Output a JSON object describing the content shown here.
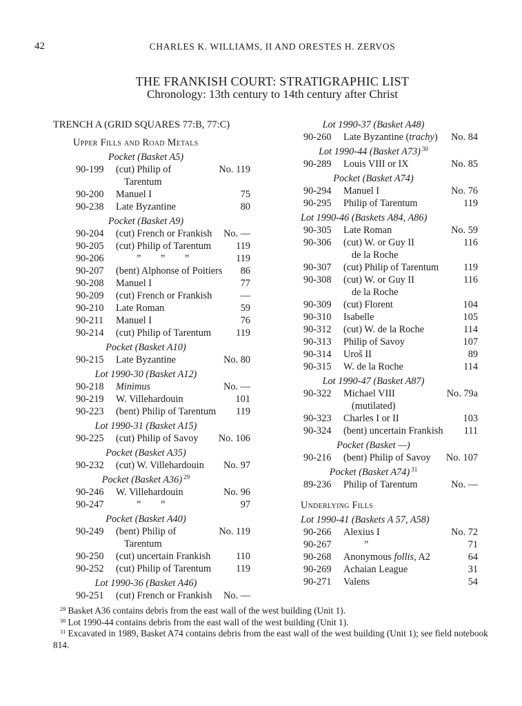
{
  "page_number": "42",
  "running_head": "CHARLES K. WILLIAMS, II AND ORESTES H. ZERVOS",
  "title": "THE FRANKISH COURT: STRATIGRAPHIC LIST",
  "subtitle": "Chronology: 13th century to 14th century after Christ",
  "column_left": {
    "entries": [
      {
        "type": "h1",
        "text": "TRENCH A (GRID SQUARES 77:B, 77:C)"
      },
      {
        "type": "h2",
        "text": "Upper Fills and Road Metals",
        "first": true
      },
      {
        "type": "sub",
        "text": "Pocket (Basket A5)"
      },
      {
        "type": "row",
        "code": "90-199",
        "desc": "(cut) Philip of",
        "num": "No. 119",
        "cont": "Tarentum"
      },
      {
        "type": "row",
        "code": "90-200",
        "desc": "Manuel I",
        "num": "75"
      },
      {
        "type": "row",
        "code": "90-238",
        "desc": "Late Byzantine",
        "num": "80"
      },
      {
        "type": "sub",
        "text": "Pocket (Basket A9)"
      },
      {
        "type": "row",
        "code": "90-204",
        "desc": "(cut) French or Frankish",
        "num": "No. —"
      },
      {
        "type": "row",
        "code": "90-205",
        "desc": "(cut) Philip of Tarentum",
        "num": "119"
      },
      {
        "type": "row",
        "code": "90-206",
        "desc": "”        ”        ”",
        "ditto": true,
        "num": "119"
      },
      {
        "type": "row",
        "code": "90-207",
        "desc": "(bent) Alphonse of Poitiers",
        "num": "86"
      },
      {
        "type": "row",
        "code": "90-208",
        "desc": "Manuel I",
        "num": "77"
      },
      {
        "type": "row",
        "code": "90-209",
        "desc": "(cut) French or Frankish",
        "num": "—"
      },
      {
        "type": "row",
        "code": "90-210",
        "desc": "Late Roman",
        "num": "59"
      },
      {
        "type": "row",
        "code": "90-211",
        "desc": "Manuel I",
        "num": "76"
      },
      {
        "type": "row",
        "code": "90-214",
        "desc": "(cut) Philip of Tarentum",
        "num": "119"
      },
      {
        "type": "sub",
        "text": "Pocket (Basket A10)"
      },
      {
        "type": "row",
        "code": "90-215",
        "desc": "Late Byzantine",
        "num": "No. 80"
      },
      {
        "type": "sub",
        "text": "Lot 1990-30 (Basket A12)"
      },
      {
        "type": "row",
        "code": "90-218",
        "desc": "Minimus",
        "italic": true,
        "num": "No. —"
      },
      {
        "type": "row",
        "code": "90-219",
        "desc": "W. Villehardouin",
        "num": "101"
      },
      {
        "type": "row",
        "code": "90-223",
        "desc": "(bent) Philip of Tarentum",
        "num": "119"
      },
      {
        "type": "sub",
        "text": "Lot 1990-31 (Basket A15)"
      },
      {
        "type": "row",
        "code": "90-225",
        "desc": "(cut) Philip of Savoy",
        "num": "No. 106"
      },
      {
        "type": "sub",
        "text": "Pocket (Basket A35)"
      },
      {
        "type": "row",
        "code": "90-232",
        "desc": "(cut) W. Villehardouin",
        "num": "No. 97"
      },
      {
        "type": "sub",
        "text": "Pocket (Basket A36)",
        "sup": "29"
      },
      {
        "type": "row",
        "code": "90-246",
        "desc": "W. Villehardouin",
        "num": "No. 96"
      },
      {
        "type": "row",
        "code": "90-247",
        "desc": "”        ”",
        "ditto": true,
        "num": "97"
      },
      {
        "type": "sub",
        "text": "Pocket (Basket A40)"
      },
      {
        "type": "row",
        "code": "90-249",
        "desc": "(bent) Philip of",
        "num": "No. 119",
        "cont": "Tarentum"
      },
      {
        "type": "row",
        "code": "90-250",
        "desc": "(cut) uncertain Frankish",
        "num": "110"
      },
      {
        "type": "row",
        "code": "90-252",
        "desc": "(cut) Philip of Tarentum",
        "num": "119"
      },
      {
        "type": "sub",
        "text": "Lot 1990-36 (Basket A46)"
      },
      {
        "type": "row",
        "code": "90-251",
        "desc": "(cut) French or Frankish",
        "num": "No. —"
      }
    ]
  },
  "column_right": {
    "entries": [
      {
        "type": "sub",
        "text": "Lot 1990-37 (Basket A48)",
        "nomargin": true
      },
      {
        "type": "row",
        "code": "90-260",
        "desc_parts": [
          {
            "t": "Late Byzantine ("
          },
          {
            "t": "trachy",
            "i": true
          },
          {
            "t": ")"
          }
        ],
        "num": "No. 84"
      },
      {
        "type": "sub",
        "text": "Lot 1990-44 (Basket A73)",
        "sup": "30"
      },
      {
        "type": "row",
        "code": "90-289",
        "desc": "Louis VIII or IX",
        "num": "No. 85"
      },
      {
        "type": "sub",
        "text": "Pocket (Basket A74)"
      },
      {
        "type": "row",
        "code": "90-294",
        "desc": "Manuel I",
        "num": "No. 76"
      },
      {
        "type": "row",
        "code": "90-295",
        "desc": "Philip of Tarentum",
        "num": "119"
      },
      {
        "type": "sub",
        "text": "Lot 1990-46 (Baskets A84, A86)",
        "wide": true
      },
      {
        "type": "row",
        "code": "90-305",
        "desc": "Late Roman",
        "num": "No. 59"
      },
      {
        "type": "row",
        "code": "90-306",
        "desc": "(cut) W. or Guy II",
        "num": "116",
        "cont": "de la Roche"
      },
      {
        "type": "row",
        "code": "90-307",
        "desc": "(cut) Philip of Tarentum",
        "num": "119"
      },
      {
        "type": "row",
        "code": "90-308",
        "desc": "(cut) W. or Guy II",
        "num": "116",
        "cont": "de la Roche"
      },
      {
        "type": "row",
        "code": "90-309",
        "desc": "(cut) Florent",
        "num": "104"
      },
      {
        "type": "row",
        "code": "90-310",
        "desc": "Isabelle",
        "num": "105"
      },
      {
        "type": "row",
        "code": "90-312",
        "desc": "(cut) W. de la Roche",
        "num": "114"
      },
      {
        "type": "row",
        "code": "90-313",
        "desc": "Philip of Savoy",
        "num": "107"
      },
      {
        "type": "row",
        "code": "90-314",
        "desc": "Uroš II",
        "num": "89"
      },
      {
        "type": "row",
        "code": "90-315",
        "desc": "W. de la Roche",
        "num": "114"
      },
      {
        "type": "sub",
        "text": "Lot 1990-47 (Basket A87)"
      },
      {
        "type": "row",
        "code": "90-322",
        "desc": "Michael VIII",
        "num": "No. 79a",
        "cont": "(mutilated)"
      },
      {
        "type": "row",
        "code": "90-323",
        "desc": "Charles I or II",
        "num": "103"
      },
      {
        "type": "row",
        "code": "90-324",
        "desc": "(bent) uncertain Frankish",
        "num": "111"
      },
      {
        "type": "sub",
        "text": "Pocket (Basket —)"
      },
      {
        "type": "row",
        "code": "90-216",
        "desc": "(bent) Philip of Savoy",
        "num": "No. 107"
      },
      {
        "type": "sub",
        "text": "Pocket (Basket A74)",
        "sup": "31"
      },
      {
        "type": "row",
        "code": "89-236",
        "desc": "Philip of Tarentum",
        "num": "No. —"
      },
      {
        "type": "h2",
        "text": "Underlying Fills",
        "spaced": true
      },
      {
        "type": "sub",
        "text": "Lot 1990-41 (Baskets A 57, A58)",
        "wide": true
      },
      {
        "type": "row",
        "code": "90-266",
        "desc": "Alexius I",
        "num": "No. 72"
      },
      {
        "type": "row",
        "code": "90-267",
        "desc": "”",
        "ditto": true,
        "num": "71"
      },
      {
        "type": "row",
        "code": "90-268",
        "desc_parts": [
          {
            "t": "Anonymous "
          },
          {
            "t": "follis",
            "i": true
          },
          {
            "t": ", A2"
          }
        ],
        "num": "64"
      },
      {
        "type": "row",
        "code": "90-269",
        "desc": "Achaian League",
        "num": "31"
      },
      {
        "type": "row",
        "code": "90-271",
        "desc": "Valens",
        "num": "54"
      }
    ]
  },
  "footnotes": [
    {
      "num": "29",
      "text": "Basket A36 contains debris from the east wall of the west building (Unit 1)."
    },
    {
      "num": "30",
      "text": "Lot 1990-44 contains debris from the east wall of the west building (Unit 1)."
    },
    {
      "num": "31",
      "text": "Excavated in 1989, Basket A74 contains debris from the east wall of the west building (Unit 1); see field notebook 814."
    }
  ]
}
